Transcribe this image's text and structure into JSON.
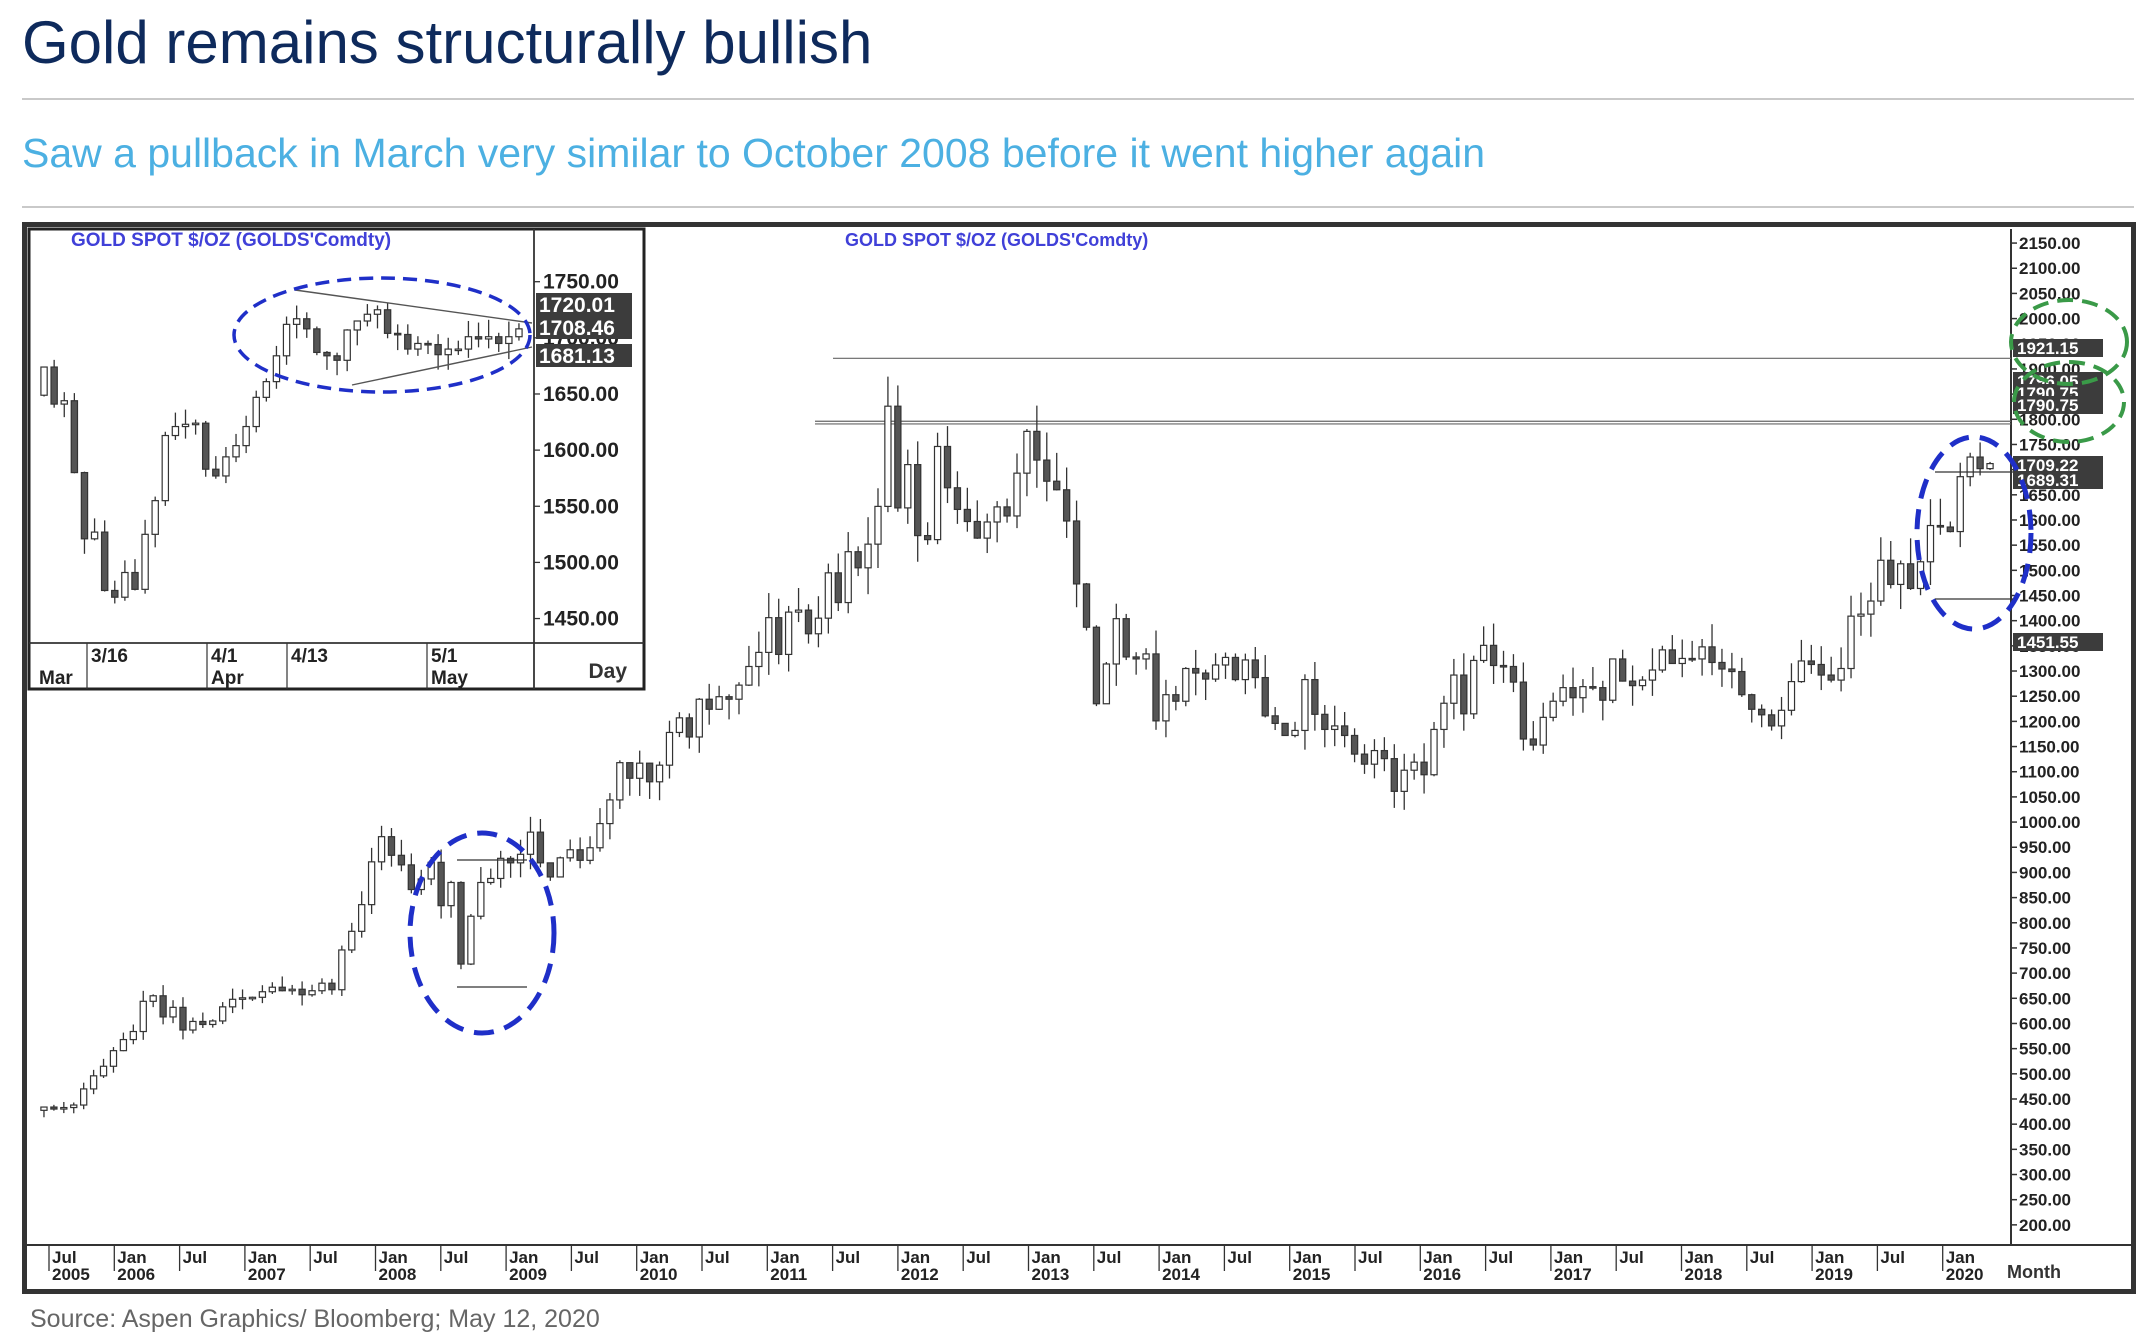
{
  "page": {
    "title": "Gold remains structurally bullish",
    "subtitle": "Saw a pullback in March very similar to October 2008 before it went higher again",
    "source": "Source: Aspen Graphics/ Bloomberg; May 12, 2020"
  },
  "colors": {
    "title": "#0e2a5c",
    "subtitle": "#4cb0e2",
    "bull_candle": "#ffffff",
    "bear_candle": "#555555",
    "chart_label": "#4040d8",
    "blue_circle": "#1f2fc8",
    "green_circle": "#3a9a48"
  },
  "chart_data": [
    {
      "type": "candlestick",
      "title": "GOLD  SPOT  $/OZ  (GOLDS'Comdty)",
      "period_label": "Month",
      "y_ticks": [
        "2150.00",
        "2100.00",
        "2050.00",
        "2000.00",
        "1950.00",
        "1900.00",
        "1850.00",
        "1800.00",
        "1750.00",
        "1700.00",
        "1650.00",
        "1600.00",
        "1550.00",
        "1500.00",
        "1450.00",
        "1400.00",
        "1350.00",
        "1300.00",
        "1250.00",
        "1200.00",
        "1150.00",
        "1100.00",
        "1050.00",
        "1000.00",
        "950.00",
        "900.00",
        "850.00",
        "800.00",
        "750.00",
        "700.00",
        "650.00",
        "600.00",
        "550.00",
        "500.00",
        "450.00",
        "400.00",
        "350.00",
        "300.00",
        "250.00",
        "200.00"
      ],
      "ylim": [
        160,
        2170
      ],
      "x_ticks": [
        {
          "m": "Jul",
          "y": "2005"
        },
        {
          "m": "Jan",
          "y": "2006"
        },
        {
          "m": "Jul",
          "y": ""
        },
        {
          "m": "Jan",
          "y": "2007"
        },
        {
          "m": "Jul",
          "y": ""
        },
        {
          "m": "Jan",
          "y": "2008"
        },
        {
          "m": "Jul",
          "y": ""
        },
        {
          "m": "Jan",
          "y": "2009"
        },
        {
          "m": "Jul",
          "y": ""
        },
        {
          "m": "Jan",
          "y": "2010"
        },
        {
          "m": "Jul",
          "y": ""
        },
        {
          "m": "Jan",
          "y": "2011"
        },
        {
          "m": "Jul",
          "y": ""
        },
        {
          "m": "Jan",
          "y": "2012"
        },
        {
          "m": "Jul",
          "y": ""
        },
        {
          "m": "Jan",
          "y": "2013"
        },
        {
          "m": "Jul",
          "y": ""
        },
        {
          "m": "Jan",
          "y": "2014"
        },
        {
          "m": "Jul",
          "y": ""
        },
        {
          "m": "Jan",
          "y": "2015"
        },
        {
          "m": "Jul",
          "y": ""
        },
        {
          "m": "Jan",
          "y": "2016"
        },
        {
          "m": "Jul",
          "y": ""
        },
        {
          "m": "Jan",
          "y": "2017"
        },
        {
          "m": "Jul",
          "y": ""
        },
        {
          "m": "Jan",
          "y": "2018"
        },
        {
          "m": "Jul",
          "y": ""
        },
        {
          "m": "Jan",
          "y": "2019"
        },
        {
          "m": "Jul",
          "y": ""
        },
        {
          "m": "Jan",
          "y": "2020"
        }
      ],
      "first_period": "2005-06",
      "price_labels": [
        {
          "value": 1921.15,
          "text": "1921.15"
        },
        {
          "value": 1796.05,
          "text": "1796.05"
        },
        {
          "value": 1790.75,
          "text": "1790.75"
        },
        {
          "value": 1790.75,
          "text": "1790.75"
        },
        {
          "value": 1709.22,
          "text": "1709.22"
        },
        {
          "value": 1689.31,
          "text": "1689.31"
        },
        {
          "value": 1451.55,
          "text": "1451.55"
        }
      ],
      "levels": [
        1921.15,
        1796.05,
        1790.75
      ],
      "closes": [
        434,
        430,
        433,
        438,
        470,
        496,
        515,
        546,
        568,
        584,
        644,
        655,
        613,
        632,
        587,
        604,
        598,
        605,
        633,
        648,
        651,
        652,
        663,
        672,
        665,
        668,
        657,
        665,
        680,
        667,
        746,
        783,
        836,
        921,
        971,
        934,
        915,
        866,
        887,
        920,
        834,
        880,
        718,
        813,
        880,
        888,
        928,
        919,
        936,
        980,
        919,
        891,
        929,
        945,
        924,
        949,
        997,
        1044,
        1118,
        1087,
        1117,
        1080,
        1113,
        1178,
        1207,
        1169,
        1244,
        1224,
        1249,
        1244,
        1272,
        1309,
        1337,
        1406,
        1333,
        1417,
        1421,
        1374,
        1405,
        1495,
        1436,
        1537,
        1505,
        1552,
        1627,
        1826,
        1624,
        1710,
        1569,
        1561,
        1746,
        1664,
        1621,
        1597,
        1564,
        1596,
        1626,
        1608,
        1693,
        1776,
        1719,
        1677,
        1660,
        1598,
        1473,
        1387,
        1235,
        1314,
        1404,
        1328,
        1324,
        1334,
        1201,
        1253,
        1240,
        1305,
        1296,
        1284,
        1312,
        1327,
        1283,
        1322,
        1287,
        1211,
        1196,
        1172,
        1182,
        1283,
        1214,
        1184,
        1191,
        1172,
        1135,
        1115,
        1142,
        1126,
        1061,
        1103,
        1119,
        1094,
        1184,
        1236,
        1292,
        1215,
        1321,
        1351,
        1311,
        1309,
        1278,
        1165,
        1153,
        1208,
        1240,
        1267,
        1247,
        1269,
        1267,
        1242,
        1324,
        1280,
        1271,
        1282,
        1302,
        1342,
        1315,
        1325,
        1324,
        1348,
        1317,
        1304,
        1299,
        1253,
        1224,
        1213,
        1191,
        1222,
        1279,
        1320,
        1313,
        1292,
        1282,
        1305,
        1409,
        1413,
        1439,
        1520,
        1472,
        1513,
        1464,
        1517,
        1589,
        1586,
        1577,
        1686,
        1725,
        1702,
        1712
      ],
      "annotations": [
        "ellipse around Oct 2008 pullback",
        "ellipse around Mar 2020 pullback",
        "ellipse around 1921.15 label",
        "ellipse around 1796.05/1790.75 labels"
      ]
    },
    {
      "type": "candlestick",
      "title": "GOLD  SPOT  $/OZ  (GOLDS'Comdty)",
      "period_label": "Day",
      "y_ticks": [
        "1750.00",
        "1700.00",
        "1650.00",
        "1600.00",
        "1550.00",
        "1500.00",
        "1450.00"
      ],
      "ylim": [
        1430,
        1772
      ],
      "x_ticks": [
        {
          "d": "3/16",
          "m": "Mar"
        },
        {
          "d": "4/1",
          "m": "Apr"
        },
        {
          "d": "4/13",
          "m": ""
        },
        {
          "d": "5/1",
          "m": "May"
        }
      ],
      "price_labels": [
        {
          "value": 1720.01,
          "text": "1720.01"
        },
        {
          "value": 1708.46,
          "text": "1708.46"
        },
        {
          "value": 1681.13,
          "text": "1681.13"
        }
      ],
      "closes": [
        1674,
        1641,
        1644,
        1580,
        1521,
        1527,
        1475,
        1469,
        1491,
        1476,
        1525,
        1555,
        1613,
        1621,
        1623,
        1624,
        1583,
        1577,
        1594,
        1604,
        1621,
        1647,
        1661,
        1684,
        1712,
        1717,
        1708,
        1687,
        1684,
        1680,
        1707,
        1715,
        1721,
        1725,
        1704,
        1703,
        1690,
        1695,
        1694,
        1685,
        1690,
        1690,
        1701,
        1699,
        1701,
        1695,
        1701,
        1708
      ],
      "annotations": [
        "ellipse around triangle consolidation",
        "converging trendlines"
      ]
    }
  ]
}
